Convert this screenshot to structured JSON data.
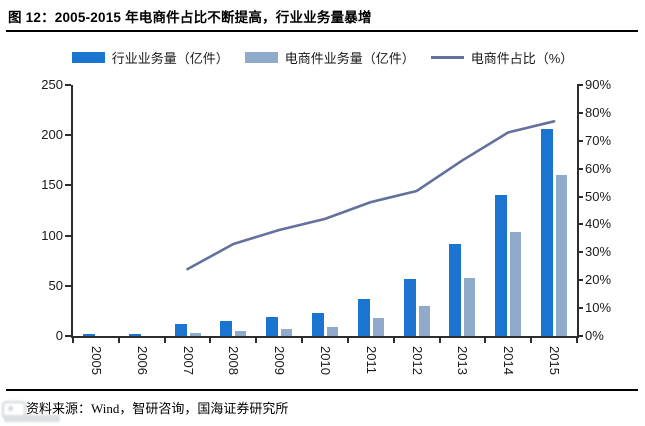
{
  "header": {
    "title": "图 12：2005-2015 年电商件占比不断提高，行业业务量暴增"
  },
  "legend": [
    {
      "label": "行业业务量（亿件）",
      "swatch": "bar",
      "color": "#1B75D0"
    },
    {
      "label": "电商件业务量（亿件）",
      "swatch": "bar",
      "color": "#8FAACB"
    },
    {
      "label": "电商件占比（%）",
      "swatch": "line",
      "color": "#63719C"
    }
  ],
  "footer": {
    "source": "资料来源：Wind，智研咨询，国海证券研究所"
  },
  "chart_data": {
    "type": "bar",
    "title": "2005-2015 年电商件占比不断提高，行业业务量暴增",
    "categories": [
      "2005",
      "2006",
      "2007",
      "2008",
      "2009",
      "2010",
      "2011",
      "2012",
      "2013",
      "2014",
      "2015"
    ],
    "series": [
      {
        "name": "行业业务量（亿件）",
        "type": "bar",
        "axis": "left",
        "color": "#1B75D0",
        "values": [
          2,
          2,
          12,
          15,
          19,
          23,
          37,
          57,
          92,
          140,
          206
        ]
      },
      {
        "name": "电商件业务量（亿件）",
        "type": "bar",
        "axis": "left",
        "color": "#8FAACB",
        "values": [
          0,
          0,
          3,
          5,
          7,
          9,
          18,
          30,
          58,
          104,
          160
        ]
      },
      {
        "name": "电商件占比（%）",
        "type": "line",
        "axis": "right",
        "color": "#63719C",
        "values": [
          null,
          null,
          24,
          33,
          38,
          42,
          48,
          52,
          63,
          73,
          77
        ]
      }
    ],
    "left_axis": {
      "min": 0,
      "max": 250,
      "step": 50,
      "ticks": [
        "0",
        "50",
        "100",
        "150",
        "200",
        "250"
      ]
    },
    "right_axis": {
      "min": 0,
      "max": 90,
      "step": 10,
      "ticks": [
        "0%",
        "10%",
        "20%",
        "30%",
        "40%",
        "50%",
        "60%",
        "70%",
        "80%",
        "90%"
      ]
    },
    "grid": false,
    "legend_position": "top"
  }
}
